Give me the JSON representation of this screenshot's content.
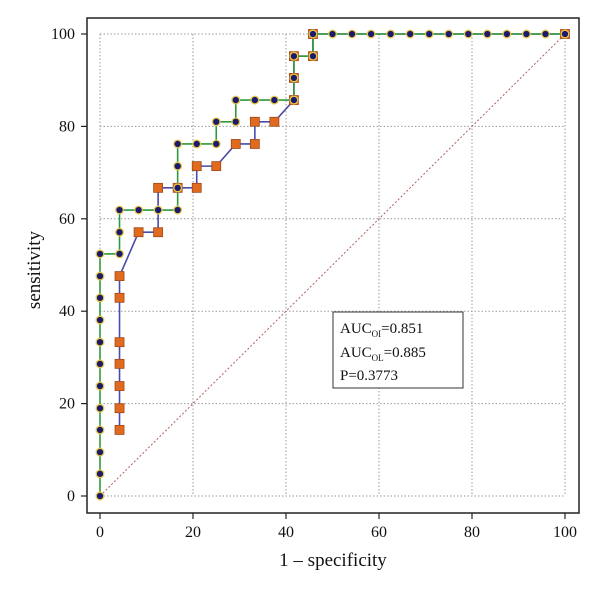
{
  "chart_data": {
    "type": "line",
    "xlabel": "1 – specificity",
    "ylabel": "sensitivity",
    "xlim": [
      0,
      100
    ],
    "ylim": [
      0,
      100
    ],
    "x_ticks": [
      "0",
      "20",
      "40",
      "60",
      "80",
      "100"
    ],
    "y_ticks": [
      "0",
      "20",
      "40",
      "60",
      "80",
      "100"
    ],
    "grid": true,
    "series": [
      {
        "marker": "circle",
        "marker_color": "#1a1a6e",
        "marker_edge": "#e8c84a",
        "line_color": "#2e9a3a",
        "points": [
          [
            0,
            0
          ],
          [
            0,
            4.8
          ],
          [
            0,
            9.5
          ],
          [
            0,
            14.3
          ],
          [
            0,
            19
          ],
          [
            0,
            23.8
          ],
          [
            0,
            28.6
          ],
          [
            0,
            33.3
          ],
          [
            0,
            38.1
          ],
          [
            0,
            42.9
          ],
          [
            0,
            47.6
          ],
          [
            0,
            52.4
          ],
          [
            4.2,
            52.4
          ],
          [
            4.2,
            57.1
          ],
          [
            4.2,
            61.9
          ],
          [
            8.3,
            61.9
          ],
          [
            12.5,
            61.9
          ],
          [
            16.7,
            61.9
          ],
          [
            16.7,
            66.7
          ],
          [
            16.7,
            71.4
          ],
          [
            16.7,
            76.2
          ],
          [
            20.8,
            76.2
          ],
          [
            25,
            76.2
          ],
          [
            25,
            81
          ],
          [
            29.2,
            81
          ],
          [
            29.2,
            85.7
          ],
          [
            33.3,
            85.7
          ],
          [
            37.5,
            85.7
          ],
          [
            41.7,
            85.7
          ],
          [
            41.7,
            90.5
          ],
          [
            41.7,
            95.2
          ],
          [
            45.8,
            95.2
          ],
          [
            45.8,
            100
          ],
          [
            50,
            100
          ],
          [
            54.2,
            100
          ],
          [
            58.3,
            100
          ],
          [
            62.5,
            100
          ],
          [
            66.7,
            100
          ],
          [
            70.8,
            100
          ],
          [
            75,
            100
          ],
          [
            79.2,
            100
          ],
          [
            83.3,
            100
          ],
          [
            87.5,
            100
          ],
          [
            91.7,
            100
          ],
          [
            95.8,
            100
          ],
          [
            100,
            100
          ]
        ]
      },
      {
        "marker": "square",
        "marker_color": "#e06a1e",
        "marker_edge": "#a0481a",
        "line_color": "#4a4aa8",
        "points": [
          [
            4.2,
            14.3
          ],
          [
            4.2,
            19
          ],
          [
            4.2,
            23.8
          ],
          [
            4.2,
            28.6
          ],
          [
            4.2,
            33.3
          ],
          [
            4.2,
            42.9
          ],
          [
            4.2,
            47.6
          ],
          [
            8.3,
            57.1
          ],
          [
            12.5,
            57.1
          ],
          [
            12.5,
            66.7
          ],
          [
            16.7,
            66.7
          ],
          [
            20.8,
            66.7
          ],
          [
            20.8,
            71.4
          ],
          [
            25,
            71.4
          ],
          [
            29.2,
            76.2
          ],
          [
            33.3,
            76.2
          ],
          [
            33.3,
            81
          ],
          [
            37.5,
            81
          ],
          [
            41.7,
            85.7
          ],
          [
            41.7,
            90.5
          ],
          [
            41.7,
            95.2
          ],
          [
            45.8,
            95.2
          ],
          [
            45.8,
            100
          ],
          [
            100,
            100
          ]
        ]
      }
    ],
    "reference_line": {
      "from": [
        0,
        0
      ],
      "to": [
        100,
        100
      ],
      "color": "#b06060"
    },
    "legend": {
      "placement": "center-right",
      "lines": [
        {
          "main": "AUC",
          "sub": "OI",
          "rest": "=0.851"
        },
        {
          "main": "AUC",
          "sub": "OL",
          "rest": "=0.885"
        },
        {
          "main": "P=0.3773",
          "sub": "",
          "rest": ""
        }
      ]
    }
  }
}
